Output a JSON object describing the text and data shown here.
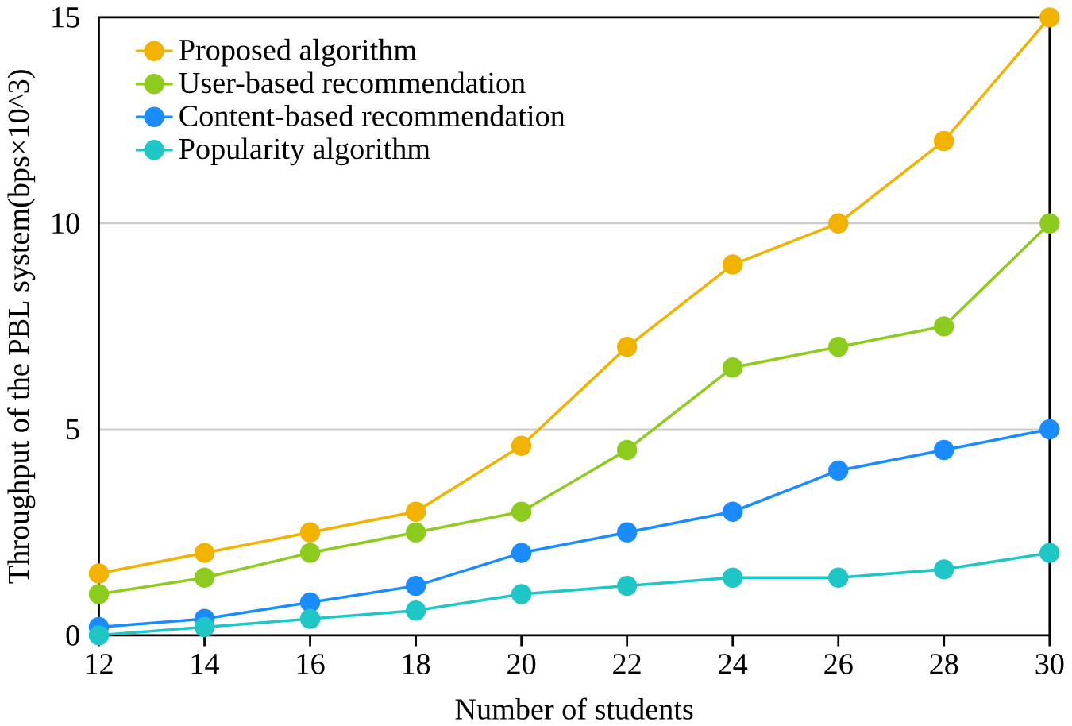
{
  "chart_data": {
    "type": "line",
    "xlabel": "Number of students",
    "ylabel": "Throughput of the PBL system(bps×10^3)",
    "x": [
      12,
      14,
      16,
      18,
      20,
      22,
      24,
      26,
      28,
      30
    ],
    "xlim": [
      12,
      30
    ],
    "xticks": [
      12,
      14,
      16,
      18,
      20,
      22,
      24,
      26,
      28,
      30
    ],
    "ylim": [
      0,
      15
    ],
    "yticks": [
      0,
      5,
      10,
      15
    ],
    "grid": "y",
    "legend": "top left",
    "marker": "circle",
    "line_style": "solid",
    "series": [
      {
        "name": "Proposed algorithm",
        "color": "#f2b200",
        "values": [
          1.5,
          2.0,
          2.5,
          3.0,
          4.6,
          7.0,
          9.0,
          10,
          12,
          15
        ]
      },
      {
        "name": "User-based recommendation",
        "color": "#8dcc1f",
        "values": [
          1.0,
          1.4,
          2.0,
          2.5,
          3.0,
          4.5,
          6.5,
          7.0,
          7.5,
          10
        ]
      },
      {
        "name": "Content-based recommendation",
        "color": "#1a8cff",
        "values": [
          0.2,
          0.4,
          0.8,
          1.2,
          2.0,
          2.5,
          3.0,
          4.0,
          4.5,
          5.0
        ]
      },
      {
        "name": "Popularity algorithm",
        "color": "#1fc6c6",
        "values": [
          0,
          0.2,
          0.4,
          0.6,
          1.0,
          1.2,
          1.4,
          1.4,
          1.6,
          2.0
        ]
      }
    ]
  }
}
